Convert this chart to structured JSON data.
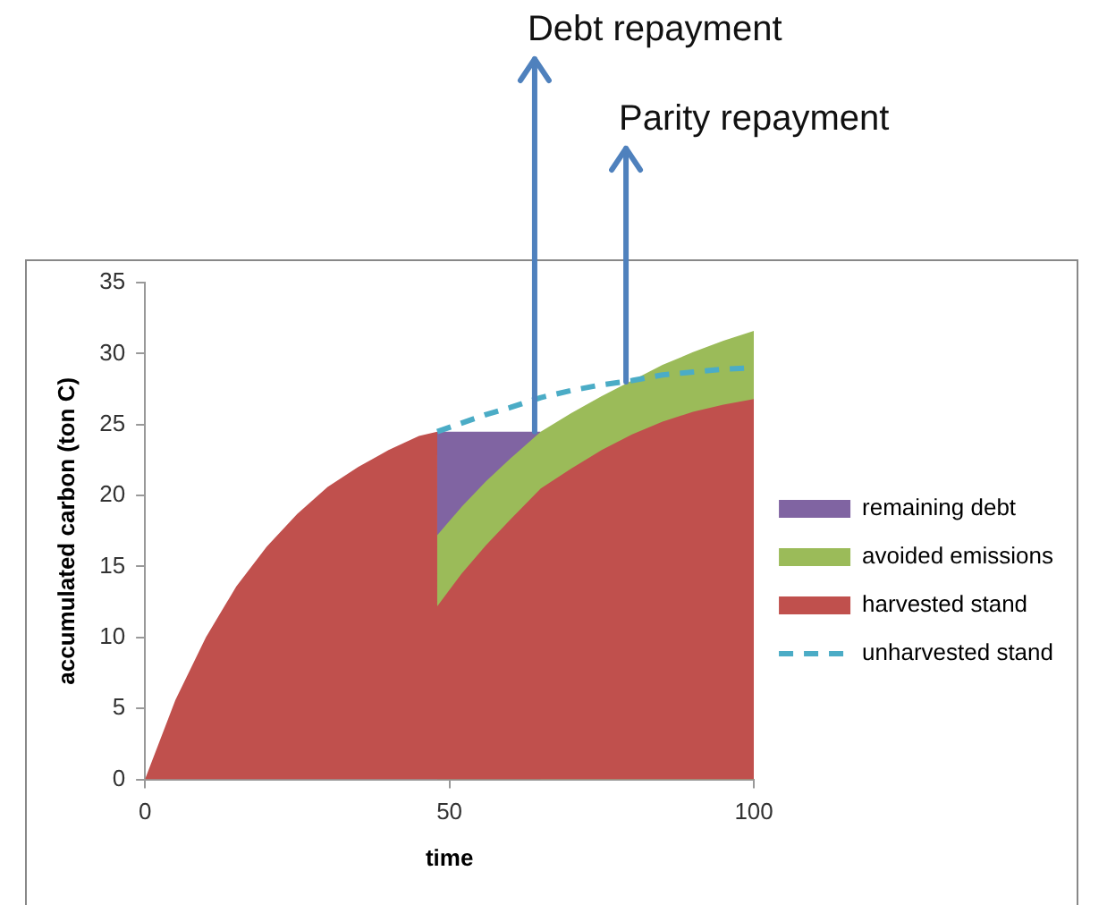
{
  "chart_data": {
    "type": "area",
    "stacked": true,
    "xlabel": "time",
    "ylabel": "accumulated carbon (ton C)",
    "x": [
      0,
      5,
      10,
      15,
      20,
      25,
      30,
      35,
      40,
      45,
      48,
      48,
      52,
      56,
      60,
      65,
      70,
      75,
      80,
      85,
      90,
      95,
      100
    ],
    "series": [
      {
        "name": "harvested stand",
        "color": "#c0504d",
        "values": [
          0,
          5.6,
          10,
          13.6,
          16.4,
          18.7,
          20.6,
          22,
          23.2,
          24.2,
          24.5,
          12.2,
          14.5,
          16.5,
          18.3,
          20.5,
          21.9,
          23.2,
          24.3,
          25.2,
          25.9,
          26.4,
          26.8
        ]
      },
      {
        "name": "avoided emissions",
        "color": "#9bbb59",
        "values": [
          null,
          null,
          null,
          null,
          null,
          null,
          null,
          null,
          null,
          null,
          null,
          5.0,
          4.7,
          4.5,
          4.3,
          4.0,
          3.9,
          3.8,
          3.8,
          4.0,
          4.2,
          4.5,
          4.8
        ]
      },
      {
        "name": "remaining debt",
        "color": "#8064a2",
        "values": [
          null,
          null,
          null,
          null,
          null,
          null,
          null,
          null,
          null,
          null,
          null,
          7.3,
          5.3,
          3.5,
          1.9,
          0,
          null,
          null,
          null,
          null,
          null,
          null,
          null
        ]
      },
      {
        "name": "unharvested stand",
        "type": "line",
        "line_style": "dashed",
        "color": "#4bacc6",
        "x": [
          48,
          52,
          56,
          60,
          65,
          70,
          75,
          80,
          85,
          90,
          95,
          100
        ],
        "values": [
          24.5,
          25.1,
          25.7,
          26.2,
          26.9,
          27.4,
          27.8,
          28.1,
          28.5,
          28.7,
          28.9,
          29.0
        ]
      }
    ],
    "xlim": [
      0,
      100
    ],
    "xticks": [
      0,
      50,
      100
    ],
    "ylim": [
      0,
      35
    ],
    "yticks": [
      0,
      5,
      10,
      15,
      20,
      25,
      30,
      35
    ],
    "grid": false,
    "legend": "right",
    "annotations": [
      {
        "text": "Debt repayment",
        "x": 64,
        "y": 24.5
      },
      {
        "text": "Parity repayment",
        "x": 79,
        "y": 28.0
      }
    ]
  }
}
